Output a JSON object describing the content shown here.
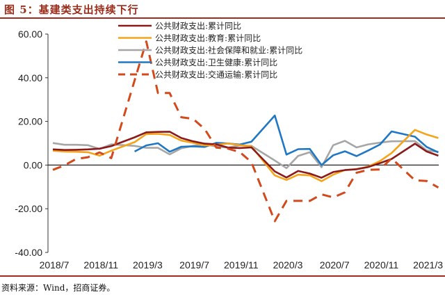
{
  "figure_title": "图 5：基建类支出持续下行",
  "source_note": "资料来源：Wind，招商证券。",
  "chart_data": {
    "type": "line",
    "title": "图 5：基建类支出持续下行",
    "xlabel": "",
    "ylabel": "",
    "ylim": [
      -40,
      60
    ],
    "yticks": [
      "60.00",
      "40.00",
      "20.00",
      "0.00",
      "-20.00",
      "-40.00"
    ],
    "ytick_values": [
      60,
      40,
      20,
      0,
      -20,
      -40
    ],
    "xtick_labels": [
      "2018/7",
      "2018/11",
      "2019/3",
      "2019/7",
      "2019/11",
      "2020/3",
      "2020/7",
      "2020/11",
      "2021/3"
    ],
    "xtick_indices": [
      0,
      4,
      8,
      12,
      16,
      20,
      24,
      28,
      32
    ],
    "x": [
      "2018/7",
      "2018/8",
      "2018/9",
      "2018/10",
      "2018/11",
      "2018/12",
      "2019/1",
      "2019/2",
      "2019/3",
      "2019/4",
      "2019/5",
      "2019/6",
      "2019/7",
      "2019/8",
      "2019/9",
      "2019/10",
      "2019/11",
      "2019/12",
      "2020/1",
      "2020/2",
      "2020/3",
      "2020/4",
      "2020/5",
      "2020/6",
      "2020/7",
      "2020/8",
      "2020/9",
      "2020/10",
      "2020/11",
      "2020/12",
      "2021/1",
      "2021/2",
      "2021/3",
      "2021/4"
    ],
    "grid": false,
    "legend_position": "top-center",
    "series": [
      {
        "name": "公共财政支出:累计同比",
        "color": "#8b1a1a",
        "style": "solid",
        "values": [
          7.2,
          6.9,
          7.0,
          7.2,
          7.5,
          8.7,
          null,
          12.7,
          15.0,
          15.2,
          15.3,
          12.4,
          10.9,
          9.8,
          9.5,
          8.0,
          7.8,
          8.1,
          null,
          -2.9,
          -5.7,
          -2.7,
          -3.9,
          -5.8,
          -3.2,
          -2.3,
          -1.9,
          -0.9,
          0.9,
          2.8,
          null,
          9.8,
          6.2,
          4.3
        ]
      },
      {
        "name": "公共财政支出:教育:累计同比",
        "color": "#f5a31a",
        "style": "solid",
        "values": [
          6.6,
          6.2,
          6.1,
          5.9,
          4.3,
          6.6,
          null,
          10.5,
          14.2,
          14.3,
          13.8,
          11.2,
          10.2,
          9.0,
          9.3,
          9.9,
          9.1,
          8.6,
          null,
          -4.7,
          -6.8,
          -4.4,
          -4.7,
          -7.4,
          -4.4,
          -2.3,
          -1.8,
          -0.7,
          1.8,
          5.5,
          null,
          16.1,
          14.0,
          12.4
        ]
      },
      {
        "name": "公共财政支出:社会保障和就业:累计同比",
        "color": "#a6a6a6",
        "style": "solid",
        "values": [
          10.1,
          9.3,
          9.3,
          9.1,
          7.4,
          9.5,
          null,
          8.8,
          7.9,
          7.9,
          4.9,
          7.7,
          8.8,
          9.5,
          8.5,
          8.0,
          9.0,
          8.8,
          null,
          2.1,
          -1.4,
          4.2,
          5.9,
          -1.0,
          9.1,
          11.1,
          8.1,
          9.5,
          10.3,
          10.9,
          null,
          11.0,
          6.7,
          6.1
        ]
      },
      {
        "name": "公共财政支出:卫生健康:累计同比",
        "color": "#1f77c4",
        "style": "solid",
        "values": [
          null,
          null,
          null,
          null,
          null,
          null,
          null,
          6.2,
          9.0,
          10.0,
          6.1,
          8.4,
          8.6,
          8.3,
          10.2,
          9.9,
          9.4,
          10.7,
          null,
          22.7,
          4.8,
          7.3,
          7.4,
          0.0,
          4.5,
          6.3,
          4.1,
          6.7,
          9.4,
          15.4,
          null,
          13.0,
          8.3,
          5.8
        ]
      },
      {
        "name": "公共财政支出:交通运输:累计同比",
        "color": "#d2491c",
        "style": "dashed",
        "values": [
          -2.2,
          -0.1,
          2.8,
          3.6,
          5.8,
          3.2,
          null,
          null,
          56.6,
          33.0,
          33.0,
          21.9,
          21.2,
          16.5,
          8.0,
          7.5,
          6.0,
          1.3,
          null,
          -25.7,
          -16.4,
          -16.4,
          -16.4,
          -13.4,
          -14.8,
          -12.5,
          -3.5,
          -2.2,
          -2.0,
          3.1,
          null,
          -7.0,
          -7.3,
          -10.3
        ]
      }
    ]
  }
}
